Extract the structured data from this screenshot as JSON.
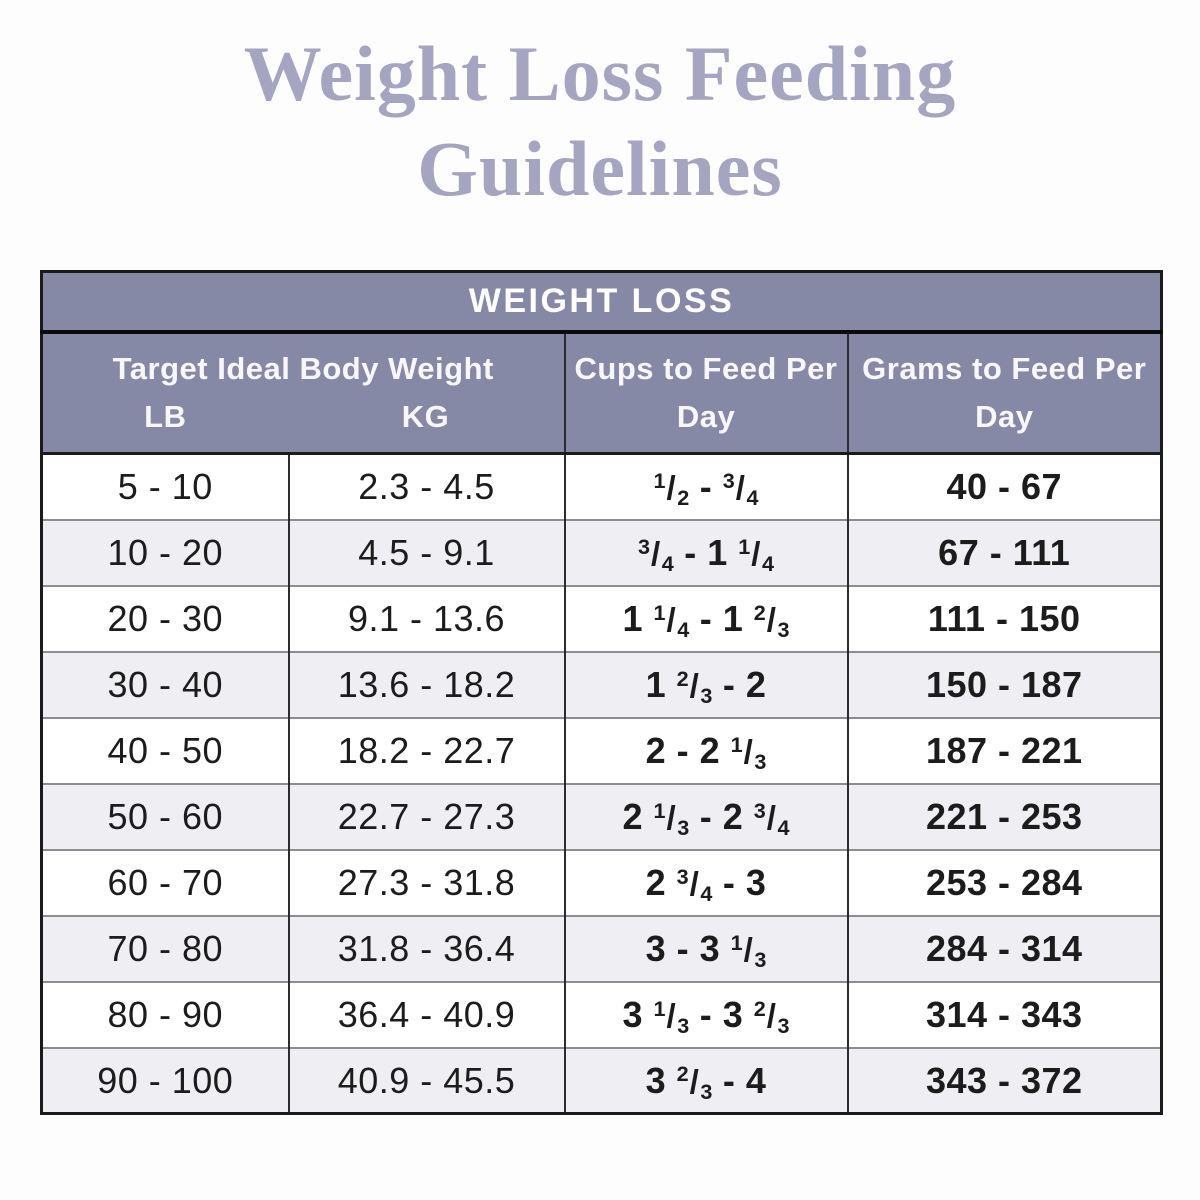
{
  "title": {
    "line1": "Weight Loss Feeding",
    "line2": "Guidelines"
  },
  "table": {
    "banner": "WEIGHT LOSS",
    "header": {
      "target_label": "Target Ideal Body Weight",
      "lb_label": "LB",
      "kg_label": "KG",
      "cups_label": "Cups to Feed Per Day",
      "grams_label": "Grams to Feed Per Day"
    },
    "colors": {
      "header_bg": "#8689a5",
      "header_text": "#ffffff",
      "row_bg": "#ffffff",
      "row_alt_bg": "#eeeef3",
      "data_text": "#1c1c1c",
      "title_text": "#a5a4c1"
    },
    "rows": [
      {
        "lb": "5 - 10",
        "kg": "2.3 - 4.5",
        "cups": "1/2 - 3/4",
        "grams": "40 - 67"
      },
      {
        "lb": "10 - 20",
        "kg": "4.5 - 9.1",
        "cups": "3/4 - 1 1/4",
        "grams": "67 - 111"
      },
      {
        "lb": "20 - 30",
        "kg": "9.1 - 13.6",
        "cups": "1 1/4 - 1 2/3",
        "grams": "111 - 150"
      },
      {
        "lb": "30 - 40",
        "kg": "13.6 - 18.2",
        "cups": "1 2/3 - 2",
        "grams": "150 - 187"
      },
      {
        "lb": "40 - 50",
        "kg": "18.2 - 22.7",
        "cups": "2 - 2 1/3",
        "grams": "187 - 221"
      },
      {
        "lb": "50 - 60",
        "kg": "22.7 - 27.3",
        "cups": "2 1/3 - 2 3/4",
        "grams": "221 - 253"
      },
      {
        "lb": "60 - 70",
        "kg": "27.3 - 31.8",
        "cups": "2 3/4 - 3",
        "grams": "253 - 284"
      },
      {
        "lb": "70 - 80",
        "kg": "31.8 - 36.4",
        "cups": "3 - 3 1/3",
        "grams": "284 - 314"
      },
      {
        "lb": "80 - 90",
        "kg": "36.4 - 40.9",
        "cups": "3 1/3 - 3 2/3",
        "grams": "314 - 343"
      },
      {
        "lb": "90 - 100",
        "kg": "40.9 - 45.5",
        "cups": "3 2/3 - 4",
        "grams": "343 - 372"
      }
    ]
  }
}
